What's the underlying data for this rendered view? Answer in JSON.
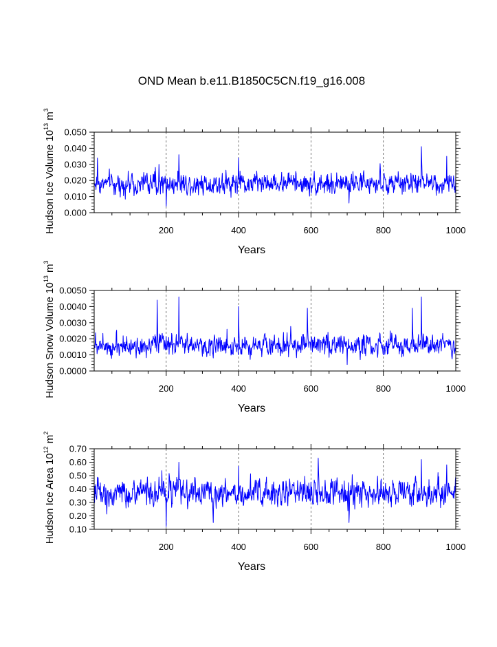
{
  "title": "OND Mean b.e11.B1850C5CN.f19_g16.008",
  "colors": {
    "series": "#0000ff",
    "axis": "#000000",
    "grid": "#555555"
  },
  "chart_data": [
    {
      "type": "line",
      "ylabel": {
        "main": "Hudson Ice Volume 10",
        "exp": "13",
        "unit": " m",
        "unit_exp": "3"
      },
      "xlabel": "Years",
      "xlim": [
        1,
        1000
      ],
      "ylim": [
        0.0,
        0.05
      ],
      "x_ticks": [
        "200",
        "400",
        "600",
        "800",
        "1000"
      ],
      "x_tick_values": [
        200,
        400,
        600,
        800,
        1000
      ],
      "y_ticks": [
        "0.000",
        "0.010",
        "0.020",
        "0.030",
        "0.040",
        "0.050"
      ],
      "y_tick_values": [
        0.0,
        0.01,
        0.02,
        0.03,
        0.04,
        0.05
      ],
      "grid": "vertical-dashed",
      "series": [
        {
          "mean": 0.018,
          "spread": 0.0045,
          "min": 0.004,
          "max": 0.041,
          "peaks": [
            [
              10,
              0.034
            ],
            [
              180,
              0.03
            ],
            [
              200,
              0.004
            ],
            [
              235,
              0.036
            ],
            [
              400,
              0.034
            ],
            [
              705,
              0.006
            ],
            [
              905,
              0.041
            ],
            [
              975,
              0.035
            ]
          ]
        }
      ]
    },
    {
      "type": "line",
      "ylabel": {
        "main": "Hudson Snow Volume 10",
        "exp": "13",
        "unit": " m",
        "unit_exp": "3"
      },
      "xlabel": "Years",
      "xlim": [
        1,
        1000
      ],
      "ylim": [
        0.0,
        0.005
      ],
      "x_ticks": [
        "200",
        "400",
        "600",
        "800",
        "1000"
      ],
      "x_tick_values": [
        200,
        400,
        600,
        800,
        1000
      ],
      "y_ticks": [
        "0.0000",
        "0.0010",
        "0.0020",
        "0.0030",
        "0.0040",
        "0.0050"
      ],
      "y_tick_values": [
        0.0,
        0.001,
        0.002,
        0.003,
        0.004,
        0.005
      ],
      "grid": "vertical-dashed",
      "series": [
        {
          "mean": 0.0016,
          "spread": 0.00045,
          "min": 0.0003,
          "max": 0.0046,
          "peaks": [
            [
              175,
              0.0044
            ],
            [
              235,
              0.0046
            ],
            [
              400,
              0.004
            ],
            [
              590,
              0.0039
            ],
            [
              880,
              0.0039
            ],
            [
              905,
              0.0046
            ],
            [
              700,
              0.0004
            ]
          ]
        }
      ]
    },
    {
      "type": "line",
      "ylabel": {
        "main": "Hudson Ice Area 10",
        "exp": "12",
        "unit": " m",
        "unit_exp": "2"
      },
      "xlabel": "Years",
      "xlim": [
        1,
        1000
      ],
      "ylim": [
        0.1,
        0.7
      ],
      "x_ticks": [
        "200",
        "400",
        "600",
        "800",
        "1000"
      ],
      "x_tick_values": [
        200,
        400,
        600,
        800,
        1000
      ],
      "y_ticks": [
        "0.10",
        "0.20",
        "0.30",
        "0.40",
        "0.50",
        "0.60",
        "0.70"
      ],
      "y_tick_values": [
        0.1,
        0.2,
        0.3,
        0.4,
        0.5,
        0.6,
        0.7
      ],
      "grid": "vertical-dashed",
      "series": [
        {
          "mean": 0.37,
          "spread": 0.07,
          "min": 0.12,
          "max": 0.63,
          "peaks": [
            [
              200,
              0.12
            ],
            [
              235,
              0.6
            ],
            [
              330,
              0.15
            ],
            [
              400,
              0.57
            ],
            [
              620,
              0.63
            ],
            [
              705,
              0.15
            ],
            [
              905,
              0.62
            ],
            [
              975,
              0.58
            ]
          ]
        }
      ]
    }
  ]
}
